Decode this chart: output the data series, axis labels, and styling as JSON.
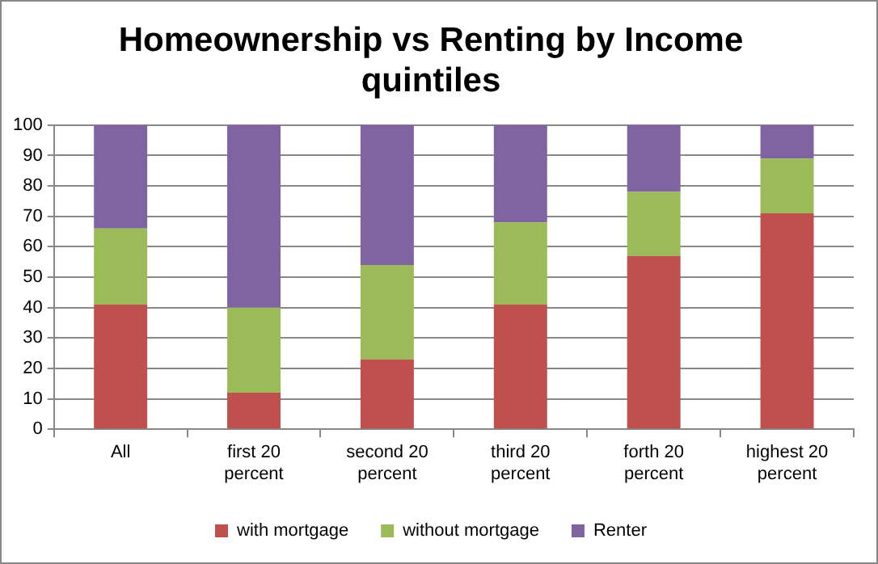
{
  "chart_data": {
    "type": "bar",
    "title": "Homeownership vs Renting by Income quintiles",
    "categories": [
      "All",
      "first 20 percent",
      "second 20 percent",
      "third 20 percent",
      "forth 20 percent",
      "highest 20 percent"
    ],
    "series": [
      {
        "name": "with mortgage",
        "color": "#c0504d",
        "values": [
          41,
          12,
          23,
          41,
          57,
          71
        ]
      },
      {
        "name": "without mortgage",
        "color": "#9bbb59",
        "values": [
          25,
          28,
          31,
          27,
          21,
          18
        ]
      },
      {
        "name": "Renter",
        "color": "#8064a2",
        "values": [
          34,
          60,
          46,
          32,
          22,
          11
        ]
      }
    ],
    "stacked": true,
    "ylim": [
      0,
      100
    ],
    "yticks": [
      0,
      10,
      20,
      30,
      40,
      50,
      60,
      70,
      80,
      90,
      100
    ],
    "grid": "y",
    "legend": "bottom"
  }
}
